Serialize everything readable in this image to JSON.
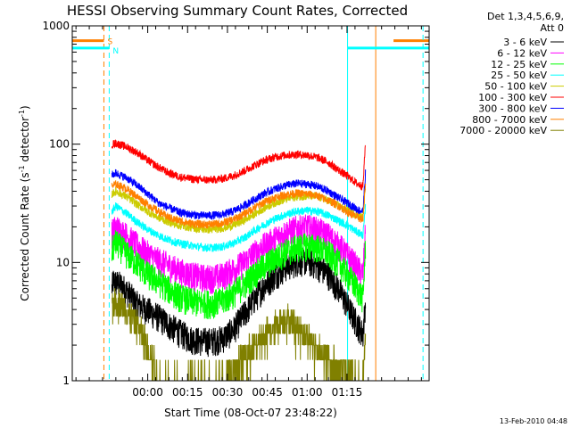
{
  "chart_data": {
    "type": "line",
    "title": "HESSI Observing Summary Count Rates, Corrected",
    "xlabel": "Start Time (08-Oct-07 23:48:22)",
    "ylabel_prefix": "Corrected Count Rate (s",
    "ylabel_sup1": "-1",
    "ylabel_mid": " detector",
    "ylabel_sup2": "-1",
    "ylabel_suffix": ")",
    "y_scale": "log",
    "ylim": [
      1,
      1000
    ],
    "y_ticks": [
      {
        "value": 1,
        "label": "1"
      },
      {
        "value": 10,
        "label": "10"
      },
      {
        "value": 100,
        "label": "100"
      },
      {
        "value": 1000,
        "label": "1000"
      }
    ],
    "xlim_minutes": [
      -16.4,
      117.9
    ],
    "x_ticks": [
      {
        "minutes": 12,
        "label": "00:00"
      },
      {
        "minutes": 27,
        "label": "00:15"
      },
      {
        "minutes": 42,
        "label": "00:30"
      },
      {
        "minutes": 57,
        "label": "00:45"
      },
      {
        "minutes": 72,
        "label": "01:00"
      },
      {
        "minutes": 87,
        "label": "01:15"
      }
    ],
    "legend": {
      "header1": "Det 1,3,4,5,6,9,",
      "header2": "Att 0",
      "placement": "right"
    },
    "series": [
      {
        "name": "3 - 6 keV",
        "color": "#000000",
        "x": [
          -1.5,
          -1,
          2,
          5,
          8,
          12,
          16,
          20,
          24,
          28,
          32,
          36,
          40,
          44,
          48,
          52,
          56,
          60,
          64,
          68,
          72,
          74,
          76,
          80,
          84,
          88,
          91,
          93,
          94
        ],
        "y": [
          6,
          7,
          6.5,
          5.5,
          4.5,
          4,
          3.5,
          3,
          2.6,
          2.3,
          2.2,
          2.2,
          2.3,
          2.7,
          3.6,
          4.9,
          6.5,
          8,
          9.3,
          10.3,
          10.5,
          10,
          9.5,
          8,
          6,
          4,
          3,
          2.5,
          5
        ]
      },
      {
        "name": "6 - 12 keV",
        "color": "#ff00ff",
        "x": [
          -1.5,
          0,
          4,
          8,
          12,
          16,
          20,
          24,
          28,
          32,
          36,
          40,
          44,
          48,
          52,
          56,
          60,
          64,
          68,
          72,
          76,
          80,
          84,
          88,
          91,
          93,
          94
        ],
        "y": [
          18,
          20,
          17,
          14,
          12,
          10.5,
          9.5,
          8.5,
          8,
          7.6,
          7.5,
          7.8,
          8.7,
          10,
          12,
          14,
          16,
          18,
          19.5,
          20,
          19,
          17,
          14,
          11,
          9,
          8,
          20
        ]
      },
      {
        "name": "12 - 25 keV",
        "color": "#00ff00",
        "x": [
          -1.5,
          0,
          4,
          8,
          12,
          16,
          20,
          24,
          28,
          32,
          36,
          40,
          44,
          48,
          52,
          56,
          60,
          64,
          68,
          72,
          76,
          80,
          84,
          88,
          91,
          93,
          94
        ],
        "y": [
          13,
          15,
          12,
          10,
          8,
          7,
          6,
          5.2,
          4.8,
          4.6,
          4.6,
          4.8,
          5.5,
          6.5,
          8,
          9.5,
          11,
          12.5,
          13.5,
          14,
          13.5,
          12,
          10,
          7.5,
          6,
          5,
          15
        ]
      },
      {
        "name": "25 - 50 keV",
        "color": "#00ffff",
        "x": [
          -1.5,
          0,
          4,
          8,
          12,
          16,
          20,
          24,
          28,
          32,
          36,
          40,
          44,
          48,
          52,
          56,
          60,
          64,
          68,
          72,
          76,
          80,
          84,
          88,
          91,
          93,
          94
        ],
        "y": [
          27,
          30,
          26,
          22,
          19,
          17,
          15.5,
          14.5,
          14,
          13.5,
          13.3,
          13.6,
          14.5,
          16,
          18.5,
          21,
          23.5,
          25.5,
          27,
          27.5,
          27,
          25,
          22.5,
          20,
          18,
          17,
          30
        ]
      },
      {
        "name": "50 - 100 keV",
        "color": "#cccc00",
        "x": [
          -1.5,
          0,
          4,
          8,
          12,
          16,
          20,
          24,
          28,
          32,
          36,
          40,
          44,
          48,
          52,
          56,
          60,
          64,
          68,
          72,
          76,
          80,
          84,
          88,
          91,
          93,
          94
        ],
        "y": [
          38,
          40,
          36,
          31,
          27,
          24,
          22,
          20.5,
          19.8,
          19.2,
          19,
          19.5,
          20.5,
          22.5,
          25.5,
          29,
          32,
          34.5,
          36,
          36.5,
          36,
          33.5,
          30,
          27,
          25,
          24,
          45
        ]
      },
      {
        "name": "100 - 300 keV",
        "color": "#ff0000",
        "x": [
          -1.5,
          0,
          4,
          8,
          12,
          16,
          20,
          24,
          28,
          32,
          36,
          40,
          44,
          48,
          52,
          56,
          60,
          64,
          68,
          72,
          76,
          80,
          84,
          88,
          91,
          93,
          94
        ],
        "y": [
          100,
          102,
          95,
          85,
          73,
          64,
          57,
          53,
          51,
          50,
          50,
          51,
          54,
          59,
          66,
          73,
          78,
          81,
          82,
          81,
          77,
          70,
          60,
          52,
          46,
          44,
          110
        ]
      },
      {
        "name": "300 - 800 keV",
        "color": "#0000ff",
        "x": [
          -1.5,
          0,
          4,
          8,
          12,
          16,
          20,
          24,
          28,
          32,
          36,
          40,
          44,
          48,
          52,
          56,
          60,
          64,
          68,
          72,
          76,
          80,
          84,
          88,
          91,
          93,
          94
        ],
        "y": [
          55,
          57,
          52,
          45,
          38,
          32,
          29,
          26.5,
          25.5,
          25,
          25,
          25.5,
          27,
          30,
          34,
          38.5,
          42,
          45,
          46.5,
          46,
          44,
          40,
          35,
          31,
          28,
          27,
          60
        ]
      },
      {
        "name": "800 - 7000 keV",
        "color": "#ff8000",
        "x": [
          -1.5,
          0,
          4,
          8,
          12,
          16,
          20,
          24,
          28,
          32,
          36,
          40,
          44,
          48,
          52,
          56,
          60,
          64,
          68,
          72,
          76,
          80,
          84,
          88,
          91,
          93,
          94
        ],
        "y": [
          44,
          46,
          42,
          36,
          31,
          27,
          24,
          22.5,
          21.5,
          21,
          21,
          21.5,
          23,
          25.5,
          29,
          32.5,
          35.5,
          37.5,
          38.5,
          38,
          36.5,
          33.5,
          30,
          26,
          24,
          23,
          50
        ]
      },
      {
        "name": "7000 - 20000 keV",
        "color": "#808000",
        "x": [
          -1.5,
          0,
          2,
          4,
          6,
          8,
          10,
          12,
          14,
          16,
          18,
          20,
          24,
          28,
          32,
          36,
          40,
          44,
          48,
          52,
          56,
          60,
          64,
          68,
          72,
          76,
          80,
          84,
          88,
          91,
          93,
          94
        ],
        "y": [
          4.5,
          5,
          4.5,
          4,
          3.5,
          3,
          2.5,
          2,
          1.5,
          1.2,
          1,
          1,
          1,
          1,
          1,
          1,
          1.1,
          1.3,
          1.6,
          2,
          2.5,
          3,
          3.5,
          3,
          2.5,
          2,
          1.6,
          1.3,
          1.2,
          1.1,
          1,
          3
        ]
      }
    ],
    "flags": [
      {
        "name": "S",
        "color": "#ff8000",
        "y": 750,
        "segments_minutes": [
          [
            -16.4,
            -4.5
          ],
          [
            104.5,
            117.9
          ]
        ],
        "start_label_minutes": -4.5,
        "verticals_minutes": [
          -4.5,
          97.8
        ]
      },
      {
        "name": "N",
        "color": "#00ffff",
        "y": 650,
        "segments_minutes": [
          [
            -16.4,
            -2.5
          ],
          [
            87.2,
            117.9
          ]
        ],
        "start_label_minutes": -2.5,
        "verticals_minutes": [
          -2.5,
          87.2,
          115.6
        ]
      }
    ],
    "footer": "13-Feb-2010 04:48"
  }
}
